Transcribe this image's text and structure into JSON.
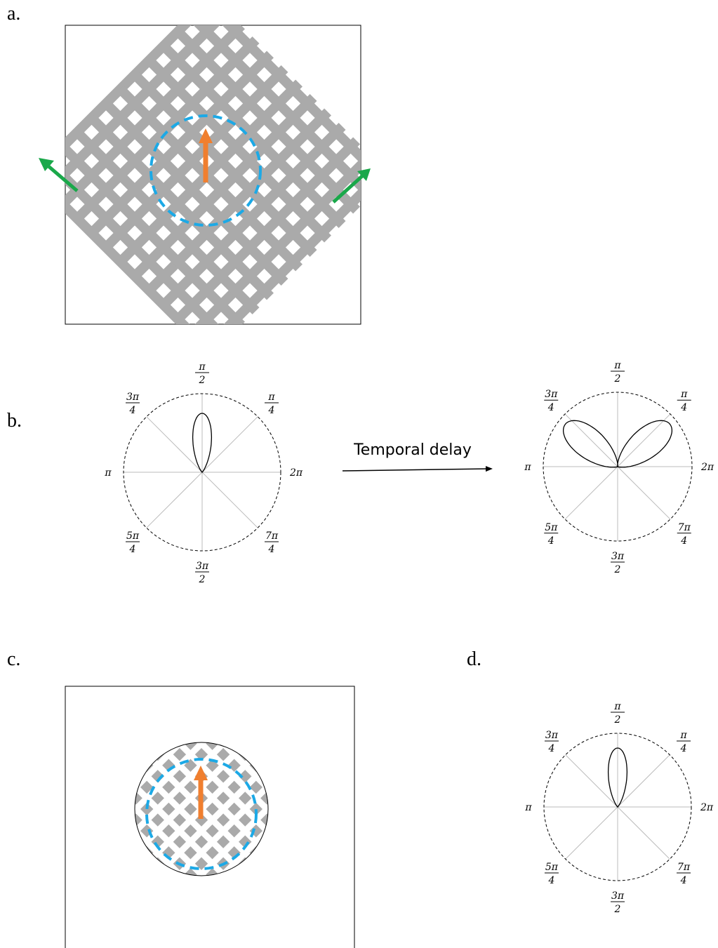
{
  "panels": {
    "a": "a.",
    "b": "b.",
    "c": "c.",
    "d": "d."
  },
  "arrow_label": "Temporal delay",
  "plots": [
    {
      "labels": [
        {
          "text": "2π"
        },
        {
          "num": "π",
          "den": "4"
        },
        {
          "num": "π",
          "den": "2"
        },
        {
          "num": "3π",
          "den": "4"
        },
        {
          "text": "π"
        },
        {
          "num": "5π",
          "den": "4"
        },
        {
          "num": "3π",
          "den": "2"
        },
        {
          "num": "7π",
          "den": "4"
        }
      ]
    },
    {
      "labels": [
        {
          "text": "2π"
        },
        {
          "num": "π",
          "den": "4"
        },
        {
          "num": "π",
          "den": "2"
        },
        {
          "num": "3π",
          "den": "4"
        },
        {
          "text": "π"
        },
        {
          "num": "5π",
          "den": "4"
        },
        {
          "num": "3π",
          "den": "2"
        },
        {
          "num": "7π",
          "den": "4"
        }
      ]
    },
    {
      "labels": [
        {
          "text": "2π"
        },
        {
          "num": "π",
          "den": "4"
        },
        {
          "num": "π",
          "den": "2"
        },
        {
          "num": "3π",
          "den": "4"
        },
        {
          "text": "π"
        },
        {
          "num": "5π",
          "den": "4"
        },
        {
          "num": "3π",
          "den": "2"
        },
        {
          "num": "7π",
          "den": "4"
        }
      ]
    }
  ]
}
